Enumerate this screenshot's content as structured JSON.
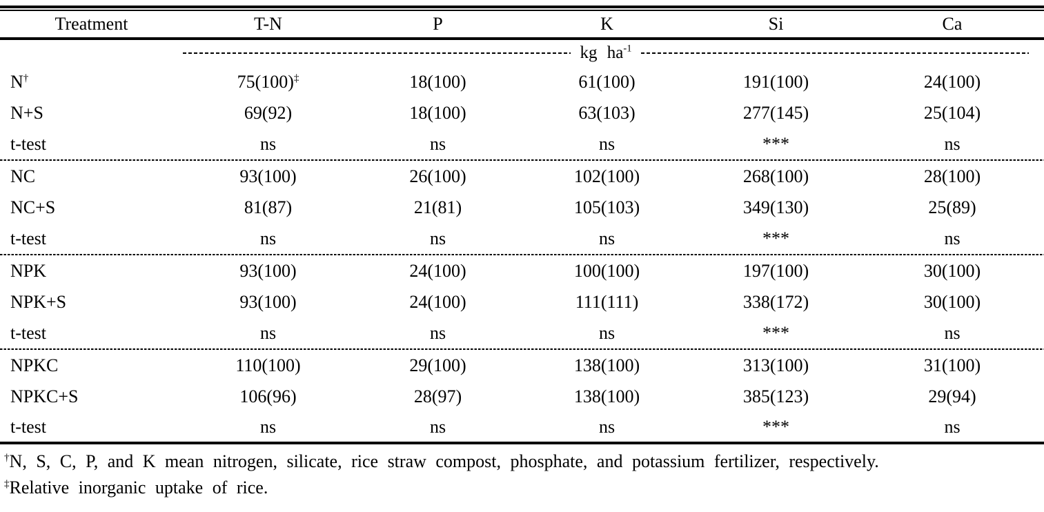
{
  "table": {
    "columns": [
      "Treatment",
      "T-N",
      "P",
      "K",
      "Si",
      "Ca"
    ],
    "unit_label": "kg ha",
    "unit_exp": "-1",
    "blocks": [
      {
        "rows": [
          {
            "cells": [
              {
                "text": "N",
                "sup": "†"
              },
              {
                "text": "75(100)",
                "sup": "‡"
              },
              {
                "text": "18(100)"
              },
              {
                "text": "61(100)"
              },
              {
                "text": "191(100)"
              },
              {
                "text": "24(100)"
              }
            ]
          },
          {
            "cells": [
              {
                "text": "N+S"
              },
              {
                "text": "69(92)"
              },
              {
                "text": "18(100)"
              },
              {
                "text": "63(103)"
              },
              {
                "text": "277(145)"
              },
              {
                "text": "25(104)"
              }
            ]
          },
          {
            "cells": [
              {
                "text": "t-test"
              },
              {
                "text": "ns"
              },
              {
                "text": "ns"
              },
              {
                "text": "ns"
              },
              {
                "text": "***"
              },
              {
                "text": "ns"
              }
            ]
          }
        ]
      },
      {
        "rows": [
          {
            "cells": [
              {
                "text": "NC"
              },
              {
                "text": "93(100)"
              },
              {
                "text": "26(100)"
              },
              {
                "text": "102(100)"
              },
              {
                "text": "268(100)"
              },
              {
                "text": "28(100)"
              }
            ]
          },
          {
            "cells": [
              {
                "text": "NC+S"
              },
              {
                "text": "81(87)"
              },
              {
                "text": "21(81)"
              },
              {
                "text": "105(103)"
              },
              {
                "text": "349(130)"
              },
              {
                "text": "25(89)"
              }
            ]
          },
          {
            "cells": [
              {
                "text": "t-test"
              },
              {
                "text": "ns"
              },
              {
                "text": "ns"
              },
              {
                "text": "ns"
              },
              {
                "text": "***"
              },
              {
                "text": "ns"
              }
            ]
          }
        ]
      },
      {
        "rows": [
          {
            "cells": [
              {
                "text": "NPK"
              },
              {
                "text": "93(100)"
              },
              {
                "text": "24(100)"
              },
              {
                "text": "100(100)"
              },
              {
                "text": "197(100)"
              },
              {
                "text": "30(100)"
              }
            ]
          },
          {
            "cells": [
              {
                "text": "NPK+S"
              },
              {
                "text": "93(100)"
              },
              {
                "text": "24(100)"
              },
              {
                "text": "111(111)"
              },
              {
                "text": "338(172)"
              },
              {
                "text": "30(100)"
              }
            ]
          },
          {
            "cells": [
              {
                "text": "t-test"
              },
              {
                "text": "ns"
              },
              {
                "text": "ns"
              },
              {
                "text": "ns"
              },
              {
                "text": "***"
              },
              {
                "text": "ns"
              }
            ]
          }
        ]
      },
      {
        "rows": [
          {
            "cells": [
              {
                "text": "NPKC"
              },
              {
                "text": "110(100)"
              },
              {
                "text": "29(100)"
              },
              {
                "text": "138(100)"
              },
              {
                "text": "313(100)"
              },
              {
                "text": "31(100)"
              }
            ]
          },
          {
            "cells": [
              {
                "text": "NPKC+S"
              },
              {
                "text": "106(96)"
              },
              {
                "text": "28(97)"
              },
              {
                "text": "138(100)"
              },
              {
                "text": "385(123)"
              },
              {
                "text": "29(94)"
              }
            ]
          },
          {
            "cells": [
              {
                "text": "t-test"
              },
              {
                "text": "ns"
              },
              {
                "text": "ns"
              },
              {
                "text": "ns"
              },
              {
                "text": "***"
              },
              {
                "text": "ns"
              }
            ]
          }
        ]
      }
    ]
  },
  "footnotes": [
    {
      "sup": "†",
      "text": "N, S, C, P, and K mean nitrogen, silicate, rice straw compost, phosphate, and potassium fertilizer, respectively."
    },
    {
      "sup": "‡",
      "text": "Relative inorganic uptake of rice."
    }
  ]
}
